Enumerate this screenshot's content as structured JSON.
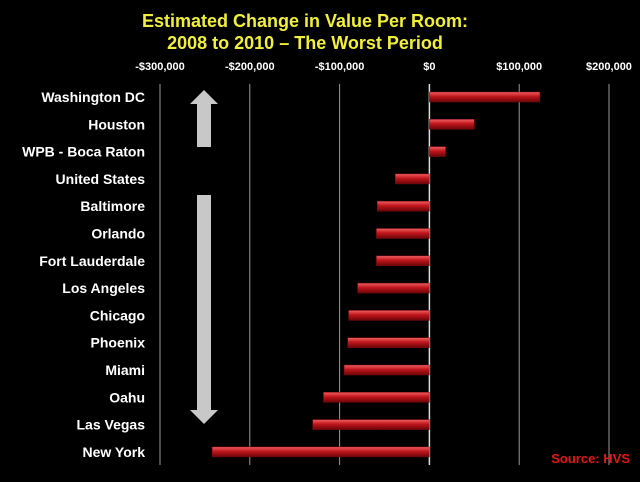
{
  "chart_data": {
    "type": "bar",
    "orientation": "horizontal",
    "title_lines": [
      "Estimated Change in Value Per Room:",
      "2008 to 2010 – The Worst Period"
    ],
    "categories": [
      "Washington DC",
      "Houston",
      "WPB - Boca Raton",
      "United States",
      "Baltimore",
      "Orlando",
      "Fort Lauderdale",
      "Los Angeles",
      "Chicago",
      "Phoenix",
      "Miami",
      "Oahu",
      "Las Vegas",
      "New York"
    ],
    "values": [
      123000,
      50000,
      18000,
      -38000,
      -58000,
      -59000,
      -59000,
      -80000,
      -90000,
      -91000,
      -95000,
      -118000,
      -130000,
      -242000
    ],
    "xlim": [
      -300000,
      200000
    ],
    "xticks": [
      -300000,
      -200000,
      -100000,
      0,
      100000,
      200000
    ],
    "xtick_labels": [
      "-$300,000",
      "-$200,000",
      "-$100,000",
      "$0",
      "$100,000",
      "$200,000"
    ],
    "axis_position": "top",
    "grid": true,
    "bar_color": "#c0151c",
    "source": "Source: HVS"
  }
}
